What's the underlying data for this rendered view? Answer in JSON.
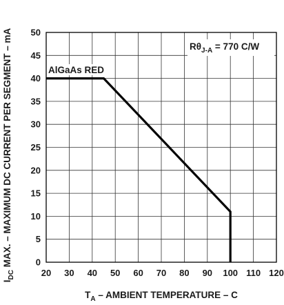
{
  "chart_data": {
    "type": "line",
    "xlabel": {
      "main": "T",
      "sub": "A",
      "rest": " – AMBIENT TEMPERATURE – C"
    },
    "ylabel": {
      "main": "I",
      "sub": "DC",
      "rest": " MAX. – MAXIMUM DC CURRENT PER SEGMENT – mA"
    },
    "xlim": [
      20,
      120
    ],
    "ylim": [
      0,
      50
    ],
    "xticks": [
      20,
      30,
      40,
      50,
      60,
      70,
      80,
      90,
      100,
      110,
      120
    ],
    "yticks": [
      0,
      5,
      10,
      15,
      20,
      25,
      30,
      35,
      40,
      45,
      50
    ],
    "grid": true,
    "series": [
      {
        "name": "AlGaAs RED",
        "x": [
          20,
          45,
          100,
          100
        ],
        "y": [
          40,
          40,
          11,
          0
        ]
      }
    ],
    "annotations": [
      {
        "text": "Rθ",
        "sub": "J-A",
        "rest": " = 770 C/W"
      }
    ],
    "colors": {
      "line": "#000000",
      "grid": "#333333",
      "axis": "#000000"
    }
  }
}
